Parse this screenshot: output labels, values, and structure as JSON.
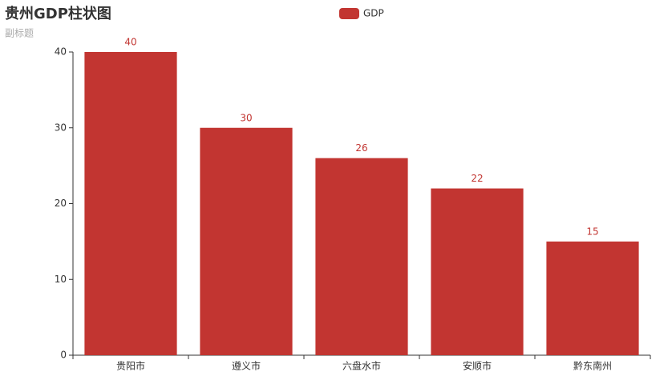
{
  "chart_data": {
    "type": "bar",
    "title": "贵州GDP柱状图",
    "subtitle": "副标题",
    "categories": [
      "贵阳市",
      "遵义市",
      "六盘水市",
      "安顺市",
      "黔东南州"
    ],
    "series": [
      {
        "name": "GDP",
        "color": "#c23531",
        "values": [
          40,
          30,
          26,
          22,
          15
        ]
      }
    ],
    "ylim": [
      0,
      40
    ],
    "yticks": [
      0,
      10,
      20,
      30,
      40
    ],
    "grid": false,
    "legend": "top"
  }
}
